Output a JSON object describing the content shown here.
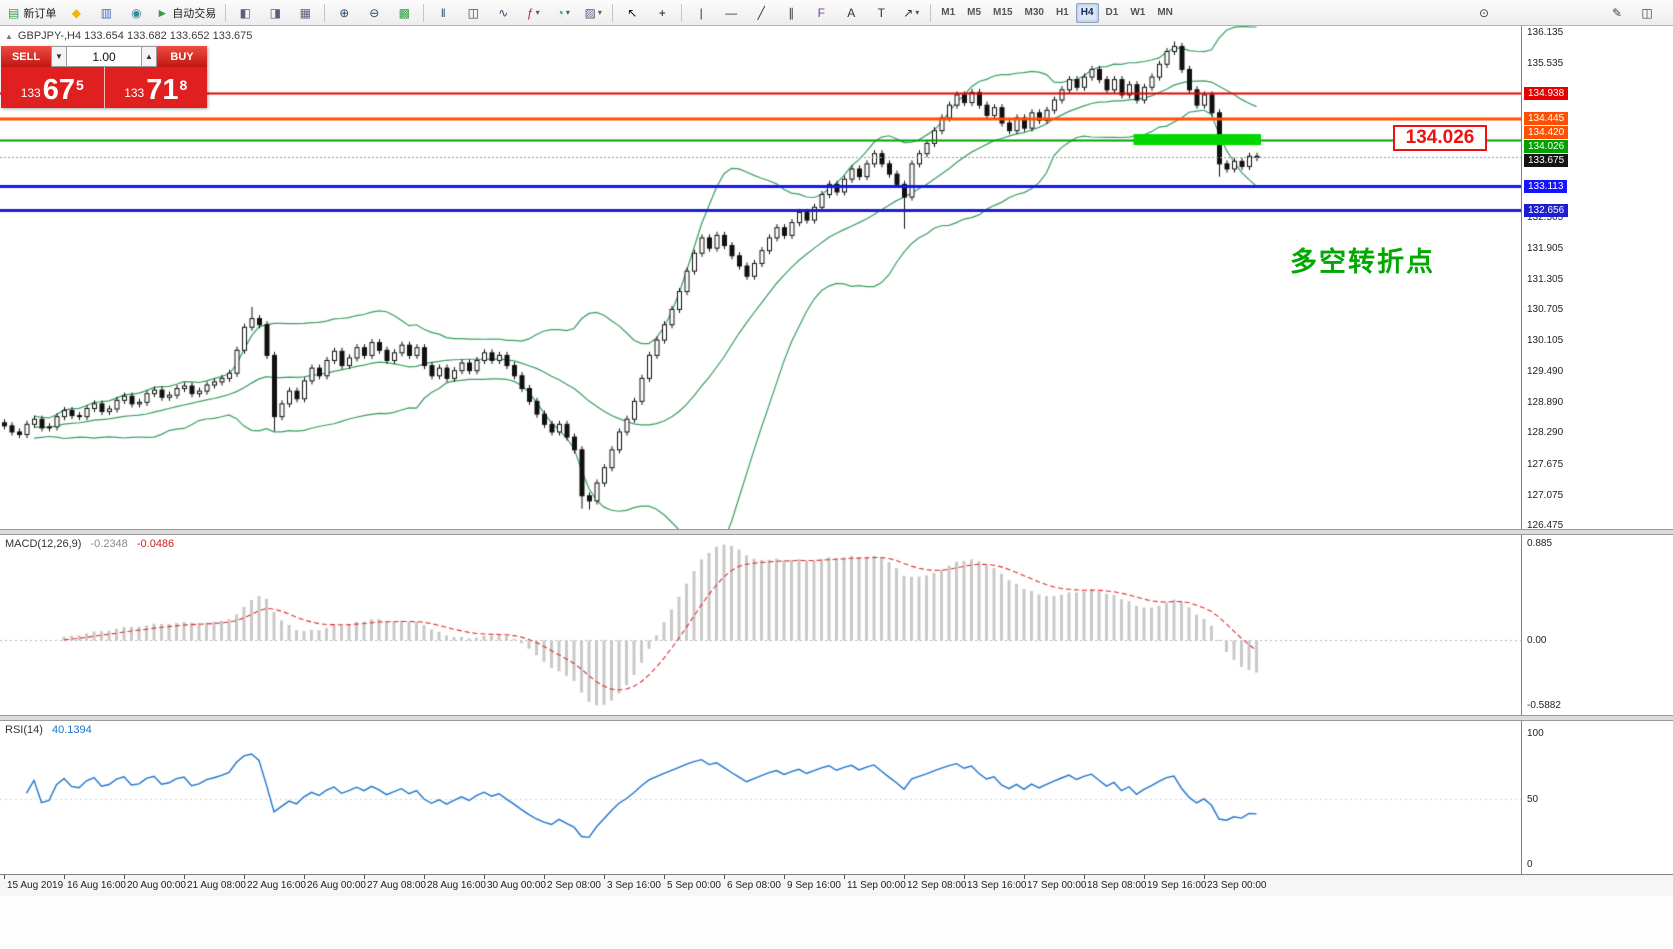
{
  "toolbar": {
    "items": [
      {
        "type": "button",
        "name": "new-order",
        "glyph": "▤",
        "glyph_color": "#2f9e44",
        "label": "新订单"
      },
      {
        "type": "button",
        "name": "favorites",
        "glyph": "◆",
        "glyph_color": "#f4b400"
      },
      {
        "type": "button",
        "name": "market-watch",
        "glyph": "▥",
        "glyph_color": "#3f6fbf"
      },
      {
        "type": "button",
        "name": "navigator",
        "glyph": "◉",
        "glyph_color": "#37879e"
      },
      {
        "type": "button",
        "name": "auto-trading",
        "glyph": "►",
        "glyph_color": "#2f9e44",
        "label": "自动交易"
      },
      {
        "type": "sep"
      },
      {
        "type": "button",
        "name": "tile-windows",
        "glyph": "◧",
        "glyph_color": "#55607a"
      },
      {
        "type": "button",
        "name": "cascade-windows",
        "glyph": "◨",
        "glyph_color": "#55607a"
      },
      {
        "type": "button",
        "name": "arrange-windows",
        "glyph": "▦",
        "glyph_color": "#55607a"
      },
      {
        "type": "sep"
      },
      {
        "type": "button",
        "name": "zoom-in",
        "glyph": "⊕",
        "glyph_color": "#2d4a66"
      },
      {
        "type": "button",
        "name": "zoom-out",
        "glyph": "⊖",
        "glyph_color": "#2d4a66"
      },
      {
        "type": "button",
        "name": "strategy-tester",
        "glyph": "▩",
        "glyph_color": "#2f9e44"
      },
      {
        "type": "sep"
      },
      {
        "type": "button",
        "name": "bar-chart-mode",
        "glyph": "‖",
        "glyph_color": "#2d4a66"
      },
      {
        "type": "button",
        "name": "candlestick-mode",
        "glyph": "◫",
        "glyph_color": "#2d4a66"
      },
      {
        "type": "button",
        "name": "line-chart-mode",
        "glyph": "∿",
        "glyph_color": "#2d4a66"
      },
      {
        "type": "button",
        "name": "indicators",
        "glyph": "ƒ",
        "glyph_color": "#a03030",
        "caret": true
      },
      {
        "type": "button",
        "name": "periods",
        "glyph": "◔",
        "glyph_color": "#2f9e44",
        "caret": true
      },
      {
        "type": "button",
        "name": "templates",
        "glyph": "▨",
        "glyph_color": "#55607a",
        "caret": true
      },
      {
        "type": "sep"
      },
      {
        "type": "button",
        "name": "cursor",
        "glyph": "↖",
        "glyph_color": "#111111"
      },
      {
        "type": "button",
        "name": "crosshair",
        "glyph": "+",
        "glyph_color": "#111111"
      },
      {
        "type": "sep"
      },
      {
        "type": "button",
        "name": "vertical-line",
        "glyph": "|",
        "glyph_color": "#333333"
      },
      {
        "type": "button",
        "name": "horizontal-line",
        "glyph": "—",
        "glyph_color": "#333333"
      },
      {
        "type": "button",
        "name": "trendline",
        "glyph": "╱",
        "glyph_color": "#333333"
      },
      {
        "type": "button",
        "name": "equidistant-channel",
        "glyph": "∥",
        "glyph_color": "#333333"
      },
      {
        "type": "button",
        "name": "fibonacci-retracement",
        "glyph": "F",
        "glyph_color": "#7a3fa0"
      },
      {
        "type": "button",
        "name": "text",
        "glyph": "A",
        "glyph_color": "#333333"
      },
      {
        "type": "button",
        "name": "text-label",
        "glyph": "T",
        "glyph_color": "#333333"
      },
      {
        "type": "button",
        "name": "arrows",
        "glyph": "↗",
        "glyph_color": "#333333",
        "caret": true
      },
      {
        "type": "sep"
      }
    ],
    "timeframes": [
      {
        "label": "M1"
      },
      {
        "label": "M5"
      },
      {
        "label": "M15"
      },
      {
        "label": "M30"
      },
      {
        "label": "H1"
      },
      {
        "label": "H4",
        "active": true
      },
      {
        "label": "D1"
      },
      {
        "label": "W1"
      },
      {
        "label": "MN"
      }
    ],
    "right_items": [
      {
        "name": "search",
        "glyph": "⊙",
        "gap_after": true
      },
      {
        "name": "edit",
        "glyph": "✎"
      },
      {
        "name": "panel-toggle",
        "glyph": "◫"
      }
    ]
  },
  "chart": {
    "collapse_icon": "▲",
    "symbol_info": "GBPJPY-,H4  133.654 133.682 133.652 133.675",
    "trade_panel": {
      "sell_label": "SELL",
      "buy_label": "BUY",
      "volume": "1.00",
      "down_arrow": "▼",
      "up_arrow": "▲",
      "sell_price": {
        "prefix": "133",
        "big": "67",
        "sup": "5"
      },
      "buy_price": {
        "prefix": "133",
        "big": "71",
        "sup": "8"
      }
    },
    "price_callout": "134.026",
    "text_annotation": "多空转折点",
    "levels": [
      {
        "price": 134.938,
        "color": "#e60000",
        "width": 2
      },
      {
        "price": 134.445,
        "color": "#ff4f02",
        "width": 2
      },
      {
        "price": 134.42,
        "color": "#ff4f02",
        "width": 2
      },
      {
        "price": 134.026,
        "color": "#00a000",
        "width": 2
      },
      {
        "price": 133.113,
        "color": "#1414ff",
        "width": 3
      },
      {
        "price": 132.656,
        "color": "#1d1dd1",
        "width": 3
      }
    ],
    "highlight_box": {
      "price": 134.026,
      "from_bar": 151,
      "to_bar": 168,
      "color": "#00d800",
      "thickness": 11
    },
    "current_price": {
      "value": 133.675,
      "badge_color": "#141414"
    },
    "price_axis_labels": [
      {
        "text": "136.135",
        "price": 136.135
      },
      {
        "text": "135.535",
        "price": 135.535
      },
      {
        "text": "132.505",
        "price": 132.505
      },
      {
        "text": "131.905",
        "price": 131.905
      },
      {
        "text": "131.305",
        "price": 131.305
      },
      {
        "text": "130.705",
        "price": 130.705
      },
      {
        "text": "130.105",
        "price": 130.105
      },
      {
        "text": "129.490",
        "price": 129.49
      },
      {
        "text": "128.890",
        "price": 128.89
      },
      {
        "text": "128.290",
        "price": 128.29
      },
      {
        "text": "127.675",
        "price": 127.675
      },
      {
        "text": "127.075",
        "price": 127.075
      },
      {
        "text": "126.475",
        "price": 126.475
      }
    ]
  },
  "chart_data": {
    "type": "candlestick",
    "symbol": "GBPJPY-",
    "timeframe": "H4",
    "ylim": [
      126.4,
      136.25
    ],
    "open_rule": "previous_close",
    "default_wick": 0.07,
    "closes": [
      128.42,
      128.3,
      128.25,
      128.45,
      128.55,
      128.38,
      128.4,
      128.6,
      128.72,
      128.62,
      128.6,
      128.76,
      128.85,
      128.7,
      128.75,
      128.92,
      129.0,
      128.85,
      128.88,
      129.05,
      129.12,
      128.98,
      129.02,
      129.15,
      129.2,
      129.05,
      129.1,
      129.22,
      129.28,
      129.35,
      129.45,
      129.9,
      130.35,
      130.52,
      130.4,
      129.8,
      128.6,
      128.85,
      129.1,
      128.95,
      129.3,
      129.55,
      129.4,
      129.7,
      129.88,
      129.6,
      129.75,
      129.95,
      129.8,
      130.05,
      129.9,
      129.7,
      129.85,
      130.0,
      129.8,
      129.95,
      129.6,
      129.4,
      129.55,
      129.35,
      129.5,
      129.65,
      129.5,
      129.7,
      129.85,
      129.7,
      129.8,
      129.6,
      129.4,
      129.15,
      128.9,
      128.65,
      128.45,
      128.3,
      128.45,
      128.2,
      127.95,
      127.05,
      126.95,
      127.3,
      127.6,
      127.95,
      128.3,
      128.55,
      128.9,
      129.35,
      129.8,
      130.1,
      130.4,
      130.7,
      131.05,
      131.45,
      131.8,
      132.1,
      131.9,
      132.15,
      131.95,
      131.75,
      131.55,
      131.35,
      131.6,
      131.85,
      132.1,
      132.3,
      132.15,
      132.4,
      132.6,
      132.45,
      132.7,
      132.95,
      133.15,
      133.0,
      133.25,
      133.45,
      133.3,
      133.55,
      133.75,
      133.55,
      133.35,
      133.15,
      132.9,
      133.55,
      133.75,
      133.95,
      134.2,
      134.45,
      134.7,
      134.9,
      134.75,
      134.95,
      134.7,
      134.5,
      134.65,
      134.35,
      134.2,
      134.45,
      134.25,
      134.55,
      134.4,
      134.6,
      134.8,
      135.0,
      135.2,
      135.05,
      135.25,
      135.4,
      135.2,
      135.0,
      135.2,
      134.9,
      135.1,
      134.8,
      135.05,
      135.25,
      135.5,
      135.75,
      135.85,
      135.4,
      135.0,
      134.7,
      134.9,
      134.55,
      133.55,
      133.45,
      133.6,
      133.5,
      133.7,
      133.675
    ],
    "wick_overrides": {
      "33": {
        "h": 130.75
      },
      "36": {
        "l": 128.32
      },
      "77": {
        "l": 126.8
      },
      "78": {
        "l": 126.78
      },
      "120": {
        "l": 132.28
      },
      "156": {
        "h": 135.95
      },
      "162": {
        "l": 133.3
      }
    },
    "bars_per_label": 8,
    "x_axis_labels": [
      "15 Aug 2019",
      "16 Aug 16:00",
      "20 Aug 00:00",
      "21 Aug 08:00",
      "22 Aug 16:00",
      "26 Aug 00:00",
      "27 Aug 08:00",
      "28 Aug 16:00",
      "30 Aug 00:00",
      "2 Sep 08:00",
      "3 Sep 16:00",
      "5 Sep 00:00",
      "6 Sep 08:00",
      "9 Sep 16:00",
      "11 Sep 00:00",
      "12 Sep 08:00",
      "13 Sep 16:00",
      "17 Sep 00:00",
      "18 Sep 08:00",
      "19 Sep 16:00",
      "23 Sep 00:00"
    ],
    "indicators": {
      "bollinger_bands": {
        "period": 20,
        "deviation": 2,
        "color": "#3a9e5f"
      },
      "macd": {
        "fast": 12,
        "slow": 26,
        "signal": 9,
        "value": -0.2348,
        "signal_value": -0.0486,
        "axis_labels": [
          "0.885",
          "0.00",
          "-0.5882"
        ],
        "histogram_color": "#c9c9c9",
        "signal_color": "#e03030"
      },
      "rsi": {
        "period": 14,
        "value": 40.1394,
        "axis_labels": [
          "100",
          "50",
          "0"
        ],
        "line_color": "#1e74cc"
      }
    }
  },
  "macd_panel": {
    "title": "MACD(12,26,9)",
    "value": "-0.2348",
    "signal_value": "-0.0486"
  },
  "rsi_panel": {
    "title": "RSI(14)",
    "value": "40.1394"
  }
}
